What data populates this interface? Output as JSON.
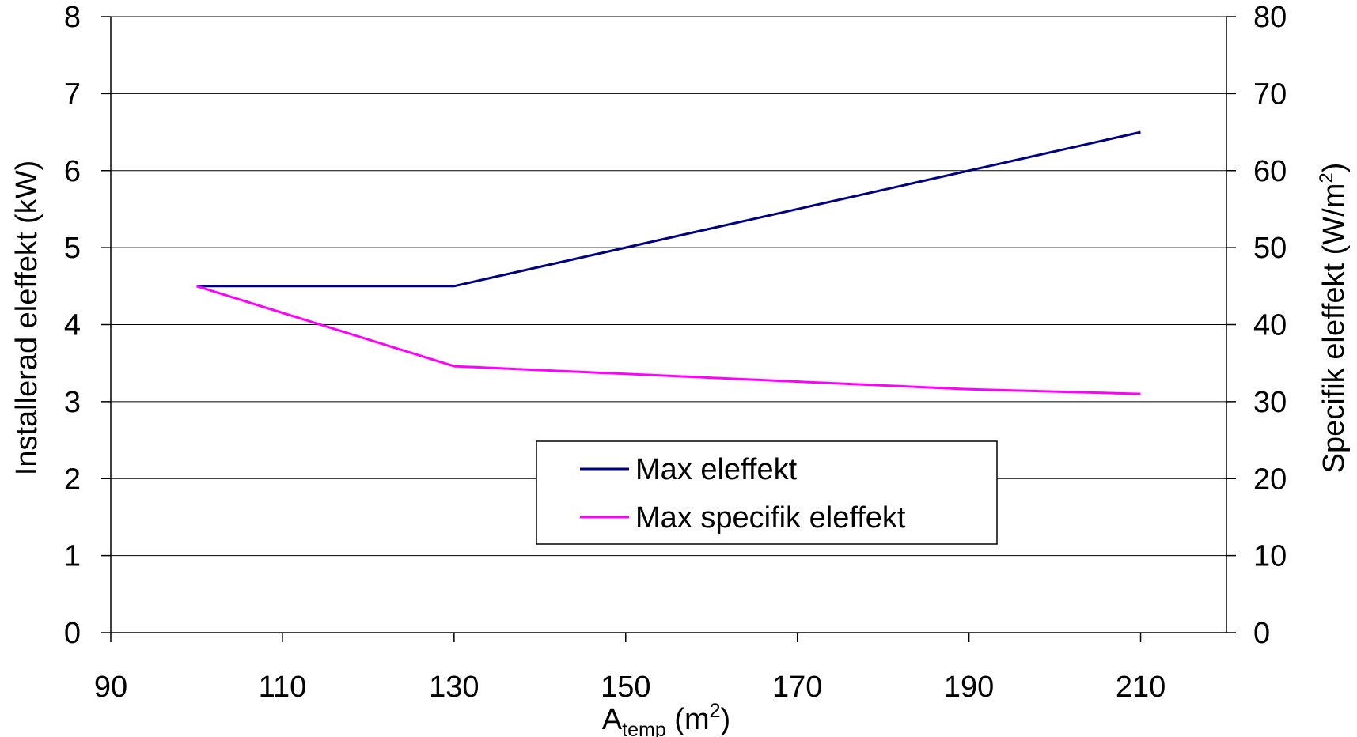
{
  "chart_data": {
    "type": "line",
    "title": "",
    "xlabel": {
      "base": "A",
      "sub": "temp",
      "unit_open": " (m",
      "unit_sup": "2",
      "unit_close": ")"
    },
    "ylabel_left": "Installerad eleffekt (kW)",
    "ylabel_right": {
      "text": "Specifik eleffekt (W/m",
      "sup": "2",
      "close": ")"
    },
    "xlim": [
      90,
      220
    ],
    "xticks": [
      90,
      110,
      130,
      150,
      170,
      190,
      210
    ],
    "ylim_left": [
      0,
      8
    ],
    "yticks_left": [
      0,
      1,
      2,
      3,
      4,
      5,
      6,
      7,
      8
    ],
    "ylim_right": [
      0,
      80
    ],
    "yticks_right": [
      0,
      10,
      20,
      30,
      40,
      50,
      60,
      70,
      80
    ],
    "grid": "horizontal",
    "legend_position": "center-bottom",
    "series": [
      {
        "name": "Max eleffekt",
        "axis": "left",
        "color": "#000080",
        "x": [
          100,
          130,
          210
        ],
        "y": [
          4.5,
          4.5,
          6.5
        ]
      },
      {
        "name": "Max specifik eleffekt",
        "axis": "right",
        "color": "#ff00ff",
        "x": [
          100,
          130,
          190,
          210
        ],
        "y": [
          45,
          34.6,
          31.6,
          31
        ]
      }
    ]
  }
}
